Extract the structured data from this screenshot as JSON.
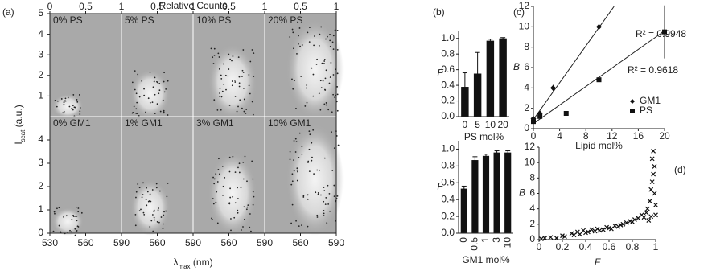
{
  "chart_data": [
    {
      "type": "heatmap",
      "label": "(a)",
      "top_axis_label": "Relative Counts",
      "ylabel": {
        "main": "I",
        "sub": "scat",
        "rest": " (a.u.)"
      },
      "xlabel": {
        "main": "λ",
        "sub": "max",
        "rest": " (nm)"
      },
      "xlim": [
        530,
        590
      ],
      "top_lim": [
        0,
        1
      ],
      "ylim": [
        0,
        5
      ],
      "columns": [
        {
          "xticks": [
            530,
            560,
            590
          ],
          "top_ticks": [
            0,
            0.5,
            1
          ]
        },
        {
          "xticks": [
            560,
            590
          ],
          "top_ticks": [
            0.5,
            1
          ]
        },
        {
          "xticks": [
            560,
            590
          ],
          "top_ticks": [
            0.5,
            1
          ]
        },
        {
          "xticks": [
            560,
            590
          ],
          "top_ticks": [
            0.5,
            1
          ]
        }
      ],
      "rows": [
        {
          "yticks": [
            1,
            2,
            3,
            4,
            5
          ]
        },
        {
          "yticks": [
            0,
            1,
            2,
            3,
            4
          ]
        }
      ],
      "panels": [
        "0% PS",
        "5% PS",
        "10% PS",
        "20% PS",
        "0% GM1",
        "1% GM1",
        "3% GM1",
        "10% GM1"
      ]
    },
    {
      "type": "bar",
      "label": "(b)",
      "ylabel": "F",
      "xlabel": "PS mol%",
      "categories": [
        "0",
        "5",
        "10",
        "20"
      ],
      "values": [
        0.38,
        0.55,
        0.97,
        1.0
      ],
      "errors": [
        0.18,
        0.27,
        0.02,
        0.01
      ],
      "color": "#111111",
      "ylim": [
        0,
        1.1
      ],
      "yticks": [
        {
          "value": 0,
          "label": "0.0"
        },
        {
          "value": 0.2,
          "label": "0.2"
        },
        {
          "value": 0.4,
          "label": "0.4"
        },
        {
          "value": 0.6,
          "label": "0.6"
        },
        {
          "value": 0.8,
          "label": "0.8"
        },
        {
          "value": 1,
          "label": "1.0"
        }
      ]
    },
    {
      "type": "bar",
      "ylabel": "F",
      "xlabel": "GM1 mol%",
      "rotated_categories": true,
      "categories": [
        "0",
        "0.5",
        "1",
        "3",
        "10"
      ],
      "values": [
        0.53,
        0.87,
        0.92,
        0.96,
        0.96
      ],
      "errors": [
        0.03,
        0.04,
        0.02,
        0.02,
        0.02
      ],
      "color": "#111111",
      "ylim": [
        0,
        1.1
      ],
      "yticks": [
        {
          "value": 0,
          "label": "0.0"
        },
        {
          "value": 0.2,
          "label": "0.2"
        },
        {
          "value": 0.4,
          "label": "0.4"
        },
        {
          "value": 0.6,
          "label": "0.6"
        },
        {
          "value": 0.8,
          "label": "0.8"
        },
        {
          "value": 1,
          "label": "1.0"
        }
      ]
    },
    {
      "type": "scatter",
      "label": "(c)",
      "ylabel": "B",
      "xlabel": "Lipid mol%",
      "xlim": [
        0,
        20
      ],
      "xticks": [
        0,
        4,
        8,
        12,
        16,
        20
      ],
      "ylim": [
        0,
        12
      ],
      "yticks": [
        0,
        2,
        4,
        6,
        8,
        10,
        12
      ],
      "series": [
        {
          "name": "GM1",
          "marker": "diamond",
          "color": "#111111",
          "x": [
            0,
            1,
            3,
            10
          ],
          "y": [
            1.0,
            1.5,
            4.0,
            10.0
          ],
          "errors": [
            0.2,
            0.2,
            0.3,
            0.3
          ],
          "trendline": {
            "x": [
              0,
              12.3
            ],
            "y": [
              0.9,
              12
            ]
          },
          "annotation": "R² = 0.9948"
        },
        {
          "name": "PS",
          "marker": "square",
          "color": "#111111",
          "x": [
            0,
            1,
            5,
            10,
            20
          ],
          "y": [
            0.7,
            1.2,
            1.5,
            4.8,
            9.5
          ],
          "errors": [
            0.2,
            0.2,
            0.2,
            1.6,
            2.6
          ],
          "trendline": {
            "x": [
              0,
              20
            ],
            "y": [
              0.5,
              9.6
            ]
          },
          "annotation": "R² = 0.9618"
        }
      ]
    },
    {
      "type": "scatter",
      "label": "(d)",
      "ylabel": "B",
      "xlabel": "F",
      "xlim": [
        0,
        1
      ],
      "xticks": [
        0,
        0.2,
        0.4,
        0.6,
        0.8,
        1
      ],
      "ylim": [
        0,
        12
      ],
      "yticks": [
        0,
        2,
        4,
        6,
        8,
        10,
        12
      ],
      "series": [
        {
          "marker": "cross",
          "color": "#111111",
          "x": [
            0.02,
            0.05,
            0.1,
            0.15,
            0.2,
            0.22,
            0.28,
            0.3,
            0.33,
            0.35,
            0.38,
            0.4,
            0.42,
            0.45,
            0.48,
            0.5,
            0.52,
            0.55,
            0.58,
            0.6,
            0.62,
            0.65,
            0.68,
            0.7,
            0.72,
            0.75,
            0.78,
            0.8,
            0.82,
            0.85,
            0.88,
            0.9,
            0.92,
            0.93,
            0.95,
            0.96,
            0.97,
            0.97,
            0.98,
            0.98,
            0.99,
            0.99,
            1.0,
            1.0,
            0.96,
            0.94
          ],
          "y": [
            0.1,
            0.2,
            0.3,
            0.2,
            0.5,
            0.4,
            0.8,
            0.6,
            1.0,
            0.7,
            1.2,
            0.9,
            1.0,
            1.3,
            1.1,
            1.4,
            1.2,
            1.3,
            1.6,
            1.5,
            1.4,
            1.8,
            1.7,
            1.9,
            2.0,
            2.2,
            2.4,
            2.3,
            2.6,
            2.8,
            3.2,
            2.9,
            3.5,
            4.0,
            5.0,
            6.5,
            7.5,
            10.5,
            11.5,
            8.5,
            9.5,
            6.0,
            4.5,
            3.2,
            3.0,
            2.5
          ]
        }
      ]
    }
  ]
}
